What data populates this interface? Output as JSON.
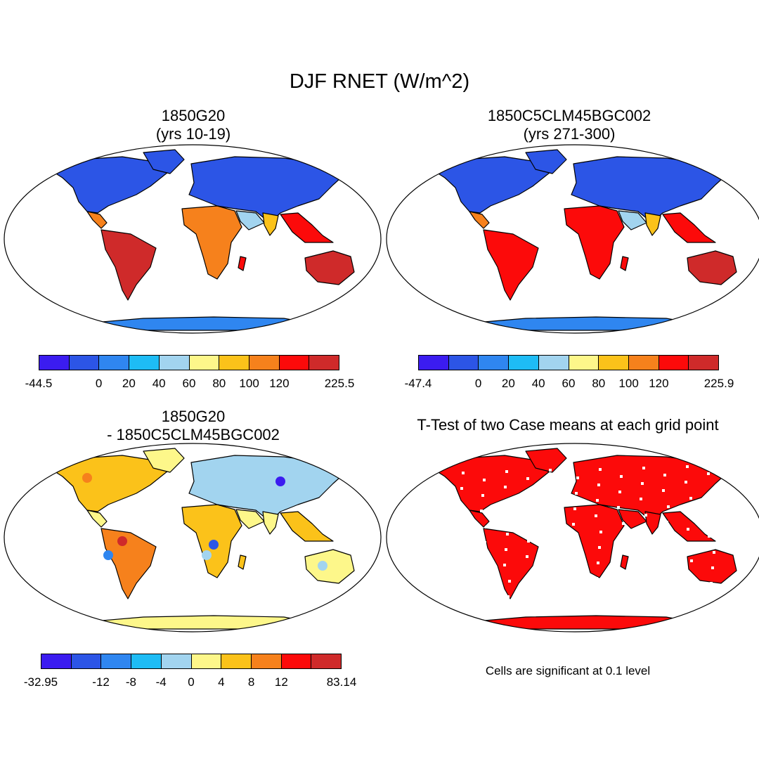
{
  "figure": {
    "title": "DJF RNET (W/m^2)"
  },
  "panels": [
    {
      "title_line1": "1850G20",
      "title_line2": "(yrs 10-19)",
      "colorbar": {
        "colors": [
          "#3b1cf0",
          "#2c55e6",
          "#2f86f0",
          "#1ebcf5",
          "#a2d4ef",
          "#fdf78a",
          "#fbc21a",
          "#f6811c",
          "#fc0a0a",
          "#cf2a2a"
        ],
        "labels": [
          "-44.5",
          "0",
          "20",
          "40",
          "60",
          "80",
          "100",
          "120",
          "225.5"
        ]
      }
    },
    {
      "title_line1": "1850C5CLM45BGC002",
      "title_line2": "(yrs 271-300)",
      "colorbar": {
        "colors": [
          "#3b1cf0",
          "#2c55e6",
          "#2f86f0",
          "#1ebcf5",
          "#a2d4ef",
          "#fdf78a",
          "#fbc21a",
          "#f6811c",
          "#fc0a0a",
          "#cf2a2a"
        ],
        "labels": [
          "-47.4",
          "0",
          "20",
          "40",
          "60",
          "80",
          "100",
          "120",
          "225.9"
        ]
      }
    },
    {
      "title_line1": "1850G20",
      "title_line2": "- 1850C5CLM45BGC002",
      "colorbar": {
        "colors": [
          "#3b1cf0",
          "#2c55e6",
          "#2f86f0",
          "#1ebcf5",
          "#a2d4ef",
          "#fdf78a",
          "#fbc21a",
          "#f6811c",
          "#fc0a0a",
          "#cf2a2a"
        ],
        "labels": [
          "-32.95",
          "-12",
          "-8",
          "-4",
          "0",
          "4",
          "8",
          "12",
          "83.14"
        ]
      }
    },
    {
      "title_line1": "T-Test of two Case means at each grid point",
      "note": "Cells are significant at 0.1 level"
    }
  ],
  "colors": {
    "ocean": "#ffffff",
    "outline": "#000000"
  }
}
